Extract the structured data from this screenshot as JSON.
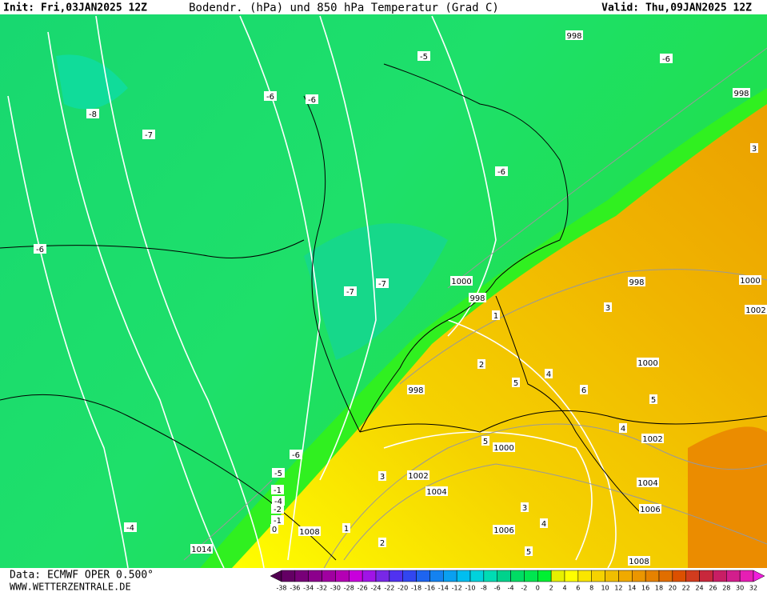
{
  "header": {
    "init": "Init: Fri,03JAN2025 12Z",
    "title": "Bodendr. (hPa) und 850 hPa Temperatur (Grad C)",
    "valid": "Valid: Thu,09JAN2025 12Z"
  },
  "contour_labels": [
    "998",
    "-5",
    "-6",
    "998",
    "-8",
    "-6",
    "-6",
    "-7",
    "-6",
    "-6",
    "-7",
    "-7",
    "1000",
    "998",
    "998",
    "1000",
    "1002",
    "3",
    "1",
    "2",
    "4",
    "5",
    "6",
    "1000",
    "5",
    "4",
    "1002",
    "998",
    "5",
    "1000",
    "3",
    "1002",
    "1004",
    "1004",
    "1006",
    "3",
    "4",
    "1006",
    "5",
    "1008",
    "-6",
    "-5",
    "-1",
    "-2",
    "-1",
    "0",
    "-4",
    "1014",
    "1008",
    "2",
    "1",
    "-4",
    "3"
  ],
  "colorbar": {
    "labels": [
      -38,
      -36,
      -34,
      -32,
      -30,
      -28,
      -26,
      -24,
      -22,
      -20,
      -18,
      -16,
      -14,
      -12,
      -10,
      -8,
      -6,
      -4,
      -2,
      0,
      2,
      4,
      6,
      8,
      10,
      12,
      14,
      16,
      18,
      20,
      22,
      24,
      26,
      28,
      30,
      32
    ],
    "colors": [
      "#500050",
      "#640064",
      "#780078",
      "#8c008c",
      "#a000a0",
      "#b400b4",
      "#c800dc",
      "#a014e6",
      "#7828e6",
      "#5032f0",
      "#3246f0",
      "#1e64f0",
      "#1482f0",
      "#0aa0f0",
      "#00bef0",
      "#00d2dc",
      "#00dcb4",
      "#00d28c",
      "#00dc64",
      "#00e650",
      "#00f032",
      "#e6f000",
      "#ffff00",
      "#fae600",
      "#f5d200",
      "#f0be00",
      "#f0aa00",
      "#eb9600",
      "#e68200",
      "#e16e00",
      "#dc5000",
      "#d23c1e",
      "#c8283c",
      "#c81e64",
      "#d21e8c",
      "#e61eb4",
      "#f01edc"
    ]
  },
  "footer": {
    "data": "Data: ECMWF OPER 0.500°",
    "site": "WWW.WETTERZENTRALE.DE"
  }
}
